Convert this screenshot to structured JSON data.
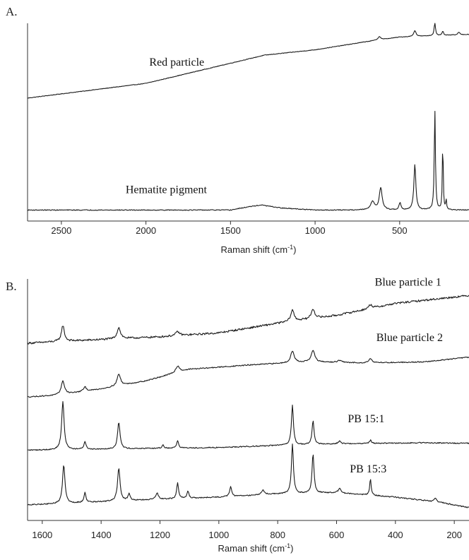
{
  "chart_data": [
    {
      "panel": "A.",
      "type": "line",
      "xlabel": "Raman shift (cm",
      "xlabel_sup": "-1",
      "xlabel_end": ")",
      "xlim": [
        2700,
        90
      ],
      "x_reversed": true,
      "xticks": [
        2500,
        2000,
        1500,
        1000,
        500
      ],
      "series": [
        {
          "name": "Red particle",
          "label_x": 1980,
          "baseline": [
            [
              2700,
              0.0
            ],
            [
              2000,
              0.22
            ],
            [
              1600,
              0.46
            ],
            [
              1300,
              0.64
            ],
            [
              1000,
              0.72
            ],
            [
              700,
              0.84
            ],
            [
              500,
              0.91
            ],
            [
              300,
              0.93
            ],
            [
              90,
              0.95
            ]
          ],
          "peaks": [
            [
              620,
              0.05,
              10
            ],
            [
              410,
              0.09,
              8
            ],
            [
              292,
              0.19,
              5
            ],
            [
              245,
              0.06,
              5
            ],
            [
              150,
              0.04,
              6
            ]
          ],
          "noise": 0.004,
          "band": [
            0.6,
            1.0
          ]
        },
        {
          "name": "Hematite pigment",
          "label_x": 2120,
          "baseline": [
            [
              2700,
              0.0
            ],
            [
              1500,
              0.0
            ],
            [
              1400,
              0.03
            ],
            [
              1320,
              0.05
            ],
            [
              1200,
              0.02
            ],
            [
              1000,
              0.0
            ],
            [
              90,
              0.0
            ]
          ],
          "peaks": [
            [
              660,
              0.08,
              14
            ],
            [
              612,
              0.22,
              10
            ],
            [
              498,
              0.07,
              7
            ],
            [
              410,
              0.45,
              7
            ],
            [
              292,
              1.0,
              4
            ],
            [
              245,
              0.7,
              3
            ],
            [
              225,
              0.1,
              3
            ]
          ],
          "noise": 0.004,
          "band": [
            0.0,
            0.53
          ]
        }
      ]
    },
    {
      "panel": "B.",
      "type": "line",
      "xlabel": "Raman shift (cm",
      "xlabel_sup": "-1",
      "xlabel_end": ")",
      "xlim": [
        1650,
        150
      ],
      "x_reversed": true,
      "xticks": [
        1600,
        1400,
        1200,
        1000,
        800,
        600,
        400,
        200
      ],
      "series": [
        {
          "name": "Blue particle 1",
          "label_x": 470,
          "baseline": [
            [
              1650,
              0.0
            ],
            [
              1550,
              0.02
            ],
            [
              1200,
              0.08
            ],
            [
              1000,
              0.13
            ],
            [
              800,
              0.25
            ],
            [
              600,
              0.35
            ],
            [
              400,
              0.5
            ],
            [
              200,
              0.58
            ],
            [
              150,
              0.6
            ]
          ],
          "peaks": [
            [
              1530,
              0.2,
              6
            ],
            [
              1340,
              0.14,
              7
            ],
            [
              1140,
              0.05,
              8
            ],
            [
              750,
              0.14,
              7
            ],
            [
              680,
              0.12,
              7
            ],
            [
              485,
              0.05,
              7
            ]
          ],
          "noise": 0.012,
          "band": [
            0.77,
            1.0
          ]
        },
        {
          "name": "Blue particle 2",
          "label_x": 465,
          "baseline": [
            [
              1650,
              0.0
            ],
            [
              1550,
              0.03
            ],
            [
              1400,
              0.15
            ],
            [
              1250,
              0.3
            ],
            [
              1100,
              0.52
            ],
            [
              900,
              0.6
            ],
            [
              700,
              0.66
            ],
            [
              500,
              0.64
            ],
            [
              300,
              0.66
            ],
            [
              150,
              0.75
            ]
          ],
          "peaks": [
            [
              1530,
              0.25,
              7
            ],
            [
              1455,
              0.08,
              6
            ],
            [
              1340,
              0.22,
              7
            ],
            [
              1140,
              0.12,
              8
            ],
            [
              750,
              0.22,
              7
            ],
            [
              680,
              0.22,
              7
            ],
            [
              590,
              0.04,
              8
            ],
            [
              485,
              0.08,
              7
            ]
          ],
          "noise": 0.01,
          "band": [
            0.52,
            0.74
          ]
        },
        {
          "name": "PB 15:1",
          "label_x": 562,
          "baseline": [
            [
              1650,
              0.0
            ],
            [
              1400,
              0.02
            ],
            [
              1000,
              0.05
            ],
            [
              800,
              0.09
            ],
            [
              600,
              0.12
            ],
            [
              300,
              0.14
            ],
            [
              150,
              0.13
            ]
          ],
          "peaks": [
            [
              1530,
              0.9,
              5
            ],
            [
              1455,
              0.15,
              4
            ],
            [
              1340,
              0.5,
              5
            ],
            [
              1190,
              0.06,
              4
            ],
            [
              1140,
              0.14,
              4
            ],
            [
              750,
              0.75,
              4
            ],
            [
              680,
              0.45,
              4
            ],
            [
              590,
              0.05,
              5
            ],
            [
              485,
              0.06,
              4
            ]
          ],
          "noise": 0.01,
          "band": [
            0.27,
            0.5
          ]
        },
        {
          "name": "PB 15:3",
          "label_x": 555,
          "baseline": [
            [
              1650,
              0.0
            ],
            [
              1550,
              0.02
            ],
            [
              1300,
              0.08
            ],
            [
              1000,
              0.14
            ],
            [
              800,
              0.2
            ],
            [
              600,
              0.22
            ],
            [
              400,
              0.14
            ],
            [
              250,
              0.05
            ],
            [
              150,
              -0.05
            ]
          ],
          "peaks": [
            [
              1527,
              0.7,
              5
            ],
            [
              1455,
              0.18,
              4
            ],
            [
              1340,
              0.6,
              5
            ],
            [
              1305,
              0.12,
              4
            ],
            [
              1210,
              0.12,
              5
            ],
            [
              1140,
              0.28,
              4
            ],
            [
              1105,
              0.12,
              4
            ],
            [
              960,
              0.18,
              4
            ],
            [
              850,
              0.08,
              6
            ],
            [
              750,
              0.9,
              4
            ],
            [
              680,
              0.7,
              4
            ],
            [
              590,
              0.08,
              5
            ],
            [
              485,
              0.3,
              3
            ],
            [
              265,
              0.07,
              4
            ]
          ],
          "noise": 0.01,
          "band": [
            0.0,
            0.3
          ]
        }
      ]
    }
  ]
}
